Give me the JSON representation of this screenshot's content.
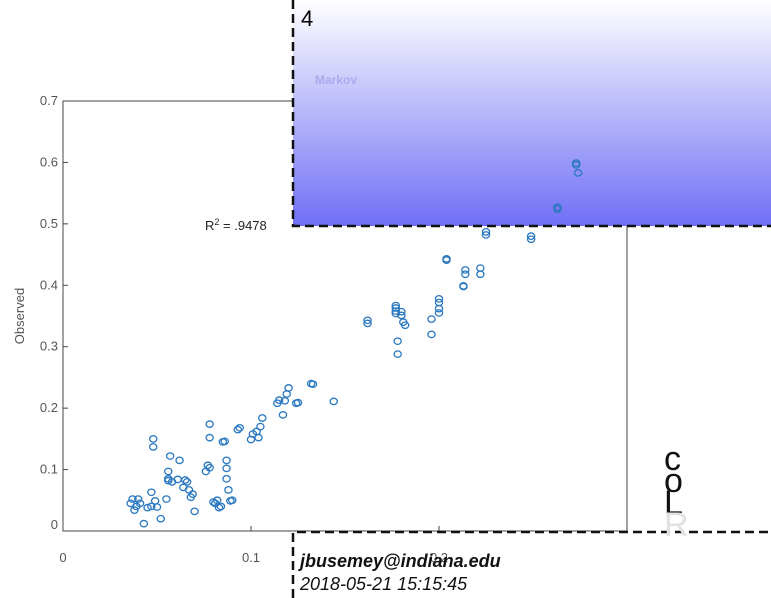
{
  "chart_data": {
    "type": "scatter",
    "title": "Markov",
    "xlabel": "",
    "ylabel": "Observed",
    "xlim": [
      0,
      0.3
    ],
    "ylim": [
      0,
      0.7
    ],
    "x_ticks": [
      "0",
      "0.1",
      "0.2"
    ],
    "y_ticks": [
      "0",
      "0.1",
      "0.2",
      "0.3",
      "0.4",
      "0.5",
      "0.6",
      "0.7"
    ],
    "annotation": "R² = .9478",
    "grid": false,
    "marker": "circle",
    "marker_color": "#2a78c0",
    "panel_gradient": [
      "#ffffff",
      "#6f6ff6"
    ],
    "points": [
      [
        0.036,
        0.045
      ],
      [
        0.037,
        0.052
      ],
      [
        0.038,
        0.034
      ],
      [
        0.04,
        0.052
      ],
      [
        0.041,
        0.045
      ],
      [
        0.039,
        0.04
      ],
      [
        0.043,
        0.012
      ],
      [
        0.045,
        0.038
      ],
      [
        0.047,
        0.04
      ],
      [
        0.047,
        0.063
      ],
      [
        0.048,
        0.15
      ],
      [
        0.048,
        0.137
      ],
      [
        0.049,
        0.049
      ],
      [
        0.05,
        0.039
      ],
      [
        0.052,
        0.02
      ],
      [
        0.055,
        0.052
      ],
      [
        0.056,
        0.082
      ],
      [
        0.056,
        0.085
      ],
      [
        0.056,
        0.097
      ],
      [
        0.057,
        0.122
      ],
      [
        0.058,
        0.08
      ],
      [
        0.061,
        0.084
      ],
      [
        0.062,
        0.115
      ],
      [
        0.064,
        0.071
      ],
      [
        0.065,
        0.083
      ],
      [
        0.066,
        0.08
      ],
      [
        0.067,
        0.067
      ],
      [
        0.068,
        0.055
      ],
      [
        0.069,
        0.06
      ],
      [
        0.07,
        0.032
      ],
      [
        0.076,
        0.097
      ],
      [
        0.077,
        0.107
      ],
      [
        0.078,
        0.103
      ],
      [
        0.078,
        0.152
      ],
      [
        0.078,
        0.174
      ],
      [
        0.08,
        0.047
      ],
      [
        0.081,
        0.045
      ],
      [
        0.082,
        0.05
      ],
      [
        0.083,
        0.038
      ],
      [
        0.084,
        0.04
      ],
      [
        0.085,
        0.145
      ],
      [
        0.086,
        0.146
      ],
      [
        0.087,
        0.085
      ],
      [
        0.087,
        0.115
      ],
      [
        0.087,
        0.102
      ],
      [
        0.088,
        0.067
      ],
      [
        0.089,
        0.049
      ],
      [
        0.09,
        0.05
      ],
      [
        0.093,
        0.165
      ],
      [
        0.094,
        0.168
      ],
      [
        0.1,
        0.149
      ],
      [
        0.101,
        0.158
      ],
      [
        0.103,
        0.162
      ],
      [
        0.104,
        0.152
      ],
      [
        0.105,
        0.17
      ],
      [
        0.106,
        0.184
      ],
      [
        0.114,
        0.208
      ],
      [
        0.115,
        0.213
      ],
      [
        0.117,
        0.189
      ],
      [
        0.118,
        0.212
      ],
      [
        0.119,
        0.223
      ],
      [
        0.12,
        0.233
      ],
      [
        0.124,
        0.208
      ],
      [
        0.125,
        0.209
      ],
      [
        0.132,
        0.24
      ],
      [
        0.133,
        0.239
      ],
      [
        0.144,
        0.211
      ],
      [
        0.162,
        0.343
      ],
      [
        0.162,
        0.338
      ],
      [
        0.177,
        0.358
      ],
      [
        0.177,
        0.363
      ],
      [
        0.177,
        0.367
      ],
      [
        0.177,
        0.354
      ],
      [
        0.178,
        0.309
      ],
      [
        0.178,
        0.288
      ],
      [
        0.18,
        0.357
      ],
      [
        0.18,
        0.351
      ],
      [
        0.181,
        0.34
      ],
      [
        0.182,
        0.335
      ],
      [
        0.196,
        0.32
      ],
      [
        0.196,
        0.345
      ],
      [
        0.2,
        0.378
      ],
      [
        0.2,
        0.372
      ],
      [
        0.2,
        0.355
      ],
      [
        0.2,
        0.362
      ],
      [
        0.204,
        0.441
      ],
      [
        0.204,
        0.443
      ],
      [
        0.213,
        0.398
      ],
      [
        0.213,
        0.399
      ],
      [
        0.214,
        0.418
      ],
      [
        0.214,
        0.425
      ],
      [
        0.222,
        0.418
      ],
      [
        0.222,
        0.428
      ],
      [
        0.225,
        0.482
      ],
      [
        0.225,
        0.487
      ],
      [
        0.249,
        0.475
      ],
      [
        0.249,
        0.48
      ],
      [
        0.263,
        0.527
      ],
      [
        0.263,
        0.524
      ],
      [
        0.273,
        0.596
      ],
      [
        0.273,
        0.599
      ],
      [
        0.274,
        0.583
      ]
    ]
  },
  "overlay": {
    "number": "4",
    "email": "jbusemey@indiana.edu",
    "datetime": "2018-05-21 15:15:45",
    "letters": [
      "c",
      "o",
      "L",
      "R"
    ]
  }
}
